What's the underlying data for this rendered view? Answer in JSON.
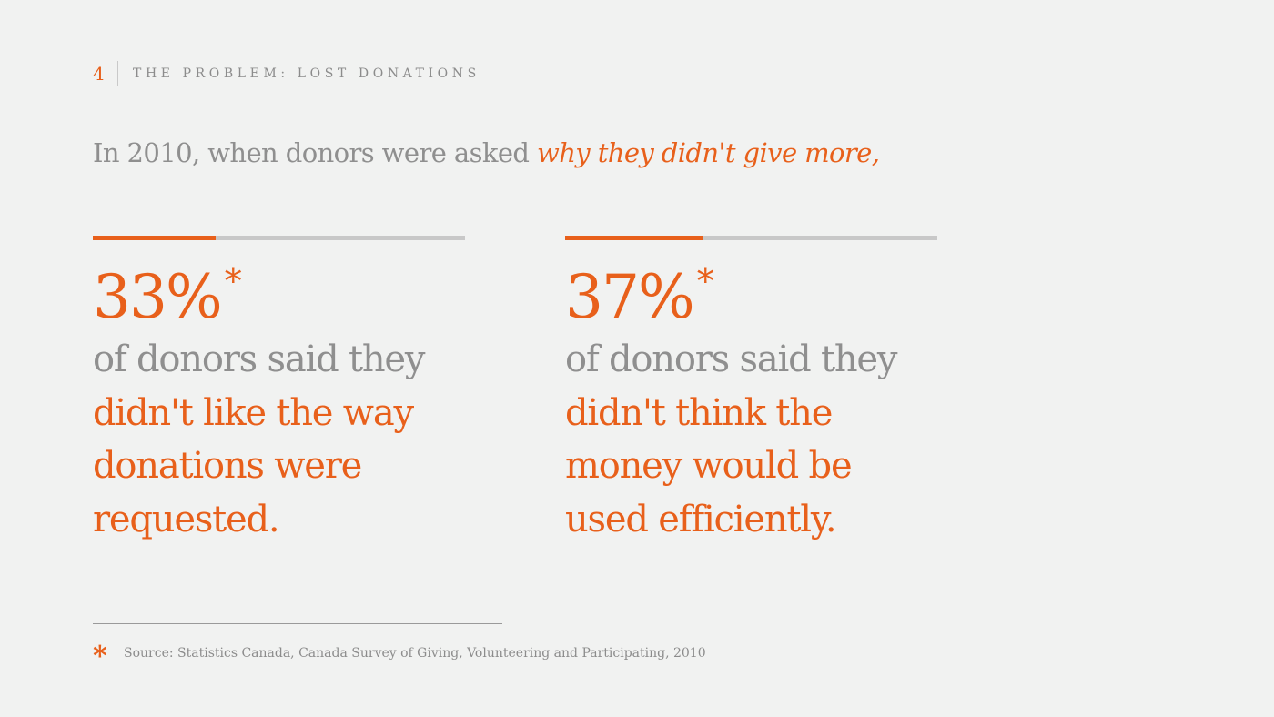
{
  "header": {
    "page_number": "4",
    "section_title": "THE PROBLEM: LOST DONATIONS"
  },
  "intro": {
    "lead": "In 2010, when donors were asked ",
    "emphasis": "why they didn't give more,"
  },
  "stats": [
    {
      "percent": "33%",
      "asterisk": "*",
      "progress_fraction": 0.33,
      "lead": "of donors said they",
      "highlight_lines": [
        "didn't like the way",
        "donations were",
        "requested."
      ]
    },
    {
      "percent": "37%",
      "asterisk": "*",
      "progress_fraction": 0.37,
      "lead": "of donors said they",
      "highlight_lines": [
        "didn't think the",
        "money would be",
        "used efficiently."
      ]
    }
  ],
  "footnote": {
    "marker": "*",
    "text": "Source: Statistics Canada, Canada Survey of Giving, Volunteering and Participating, 2010"
  },
  "colors": {
    "accent": "#e8601b",
    "muted_text": "#8f8f8f",
    "track": "#c8c8c8",
    "background": "#f1f2f1"
  }
}
